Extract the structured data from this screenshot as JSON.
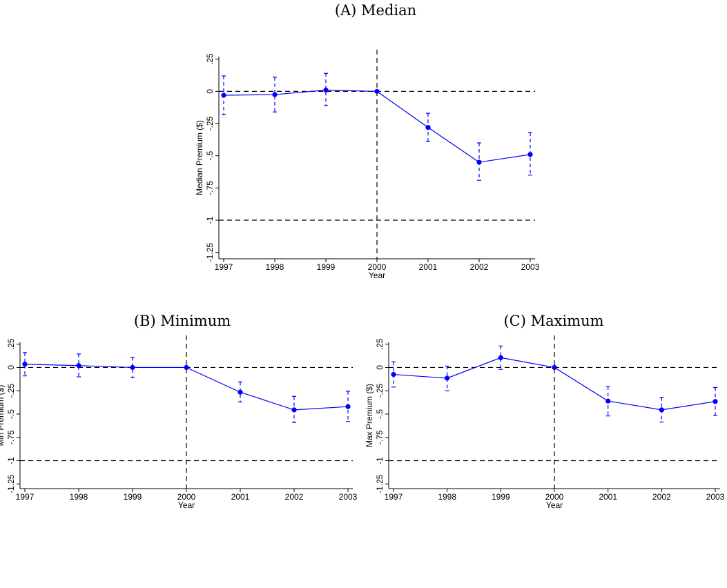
{
  "colors": {
    "series": "#0000ff",
    "reference": "#000000"
  },
  "chart_data": [
    {
      "type": "line",
      "title": "(A) Median",
      "xlabel": "Year",
      "ylabel": "Median Premium ($)",
      "x": [
        1997,
        1998,
        1999,
        2000,
        2001,
        2002,
        2003
      ],
      "xticks": [
        "1997",
        "1998",
        "1999",
        "2000",
        "2001",
        "2002",
        "2003"
      ],
      "yticks": [
        ".25",
        "0",
        "-.25",
        "-.5",
        "-.75",
        "-1",
        "-1.25"
      ],
      "ytick_values": [
        0.25,
        0,
        -0.25,
        -0.5,
        -0.75,
        -1,
        -1.25
      ],
      "ylim": [
        -1.3,
        0.27
      ],
      "reference_lines": {
        "y": [
          0,
          -1
        ],
        "x": [
          2000
        ]
      },
      "series": [
        {
          "values": [
            -0.03,
            -0.025,
            0.01,
            0.0,
            -0.28,
            -0.55,
            -0.49
          ],
          "ci_lower": [
            -0.18,
            -0.16,
            -0.11,
            0.0,
            -0.39,
            -0.69,
            -0.65
          ],
          "ci_upper": [
            0.12,
            0.11,
            0.14,
            0.0,
            -0.17,
            -0.4,
            -0.32
          ]
        }
      ],
      "grid": false
    },
    {
      "type": "line",
      "title": "(B) Minimum",
      "xlabel": "Year",
      "ylabel": "Min Premium ($)",
      "x": [
        1997,
        1998,
        1999,
        2000,
        2001,
        2002,
        2003
      ],
      "xticks": [
        "1997",
        "1998",
        "1999",
        "2000",
        "2001",
        "2002",
        "2003"
      ],
      "yticks": [
        ".25",
        "0",
        "-.25",
        "-.5",
        "-.75",
        "-1",
        "-1.25"
      ],
      "ytick_values": [
        0.25,
        0,
        -0.25,
        -0.5,
        -0.75,
        -1,
        -1.25
      ],
      "ylim": [
        -1.3,
        0.27
      ],
      "reference_lines": {
        "y": [
          0,
          -1
        ],
        "x": [
          2000
        ]
      },
      "series": [
        {
          "values": [
            0.035,
            0.02,
            0.0,
            0.0,
            -0.265,
            -0.455,
            -0.42
          ],
          "ci_lower": [
            -0.09,
            -0.1,
            -0.11,
            0.0,
            -0.37,
            -0.59,
            -0.58
          ],
          "ci_upper": [
            0.16,
            0.145,
            0.11,
            0.0,
            -0.155,
            -0.31,
            -0.255
          ]
        }
      ],
      "grid": false
    },
    {
      "type": "line",
      "title": "(C) Maximum",
      "xlabel": "Year",
      "ylabel": "Max Premium ($)",
      "x": [
        1997,
        1998,
        1999,
        2000,
        2001,
        2002,
        2003
      ],
      "xticks": [
        "1997",
        "1998",
        "1999",
        "2000",
        "2001",
        "2002",
        "2003"
      ],
      "yticks": [
        ".25",
        "0",
        "-.25",
        "-.5",
        "-.75",
        "-1",
        "-1.25"
      ],
      "ytick_values": [
        0.25,
        0,
        -0.25,
        -0.5,
        -0.75,
        -1,
        -1.25
      ],
      "ylim": [
        -1.3,
        0.27
      ],
      "reference_lines": {
        "y": [
          0,
          -1
        ],
        "x": [
          2000
        ]
      },
      "series": [
        {
          "values": [
            -0.075,
            -0.115,
            0.105,
            0.0,
            -0.36,
            -0.455,
            -0.365
          ],
          "ci_lower": [
            -0.21,
            -0.25,
            -0.02,
            0.0,
            -0.52,
            -0.585,
            -0.515
          ],
          "ci_upper": [
            0.06,
            0.015,
            0.23,
            0.0,
            -0.205,
            -0.32,
            -0.215
          ]
        }
      ],
      "grid": false
    }
  ]
}
